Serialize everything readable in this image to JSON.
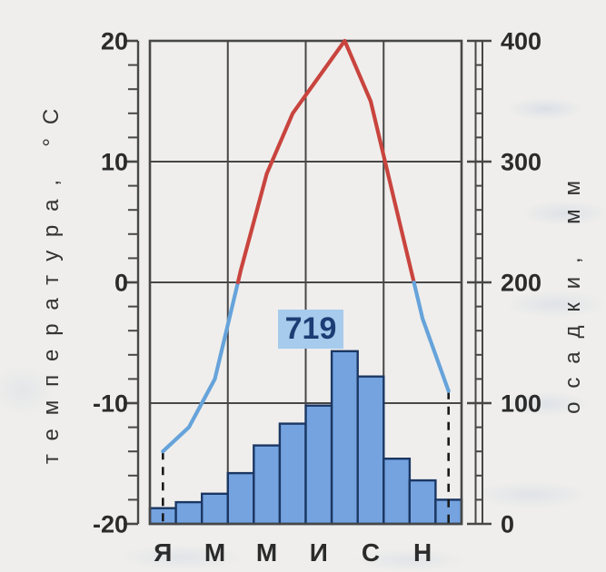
{
  "chart_data": {
    "type": "climograph (bar + line)",
    "month_axis_labels": [
      "Я",
      "М",
      "М",
      "И",
      "С",
      "Н"
    ],
    "series": [
      {
        "name": "temperature_c",
        "values": [
          -14,
          -12,
          -8,
          1,
          9,
          14,
          17,
          20,
          15,
          6,
          -3,
          -9
        ]
      },
      {
        "name": "precipitation_mm",
        "values": [
          13,
          18,
          25,
          42,
          65,
          83,
          98,
          143,
          122,
          54,
          36,
          20
        ]
      }
    ],
    "annual_precipitation_label": "719",
    "left_axis": {
      "label": "температура, °C",
      "ticks": [
        20,
        10,
        0,
        -10,
        -20
      ],
      "range": [
        -20,
        20
      ],
      "minor_step": 2
    },
    "right_axis": {
      "label": "осадки, мм",
      "ticks": [
        400,
        300,
        200,
        100,
        0
      ],
      "range": [
        0,
        400
      ],
      "minor_step": 20
    },
    "grid": {
      "vertical_month_boundaries": [
        3,
        6,
        9
      ],
      "horizontal_temperature_lines": [
        10,
        0,
        -10
      ]
    },
    "colors": {
      "temp_above_zero": "#c9443e",
      "temp_below_zero": "#66a3da",
      "bar_fill": "#74a3e0",
      "bar_stroke": "#1b3763",
      "grid": "#474747",
      "axis_text": "#2b2b2b",
      "badge_bg": "#a6cbec",
      "badge_text": "#1c3c74",
      "dashed_line": "#1a1a1a",
      "background": "#efeeec"
    }
  }
}
